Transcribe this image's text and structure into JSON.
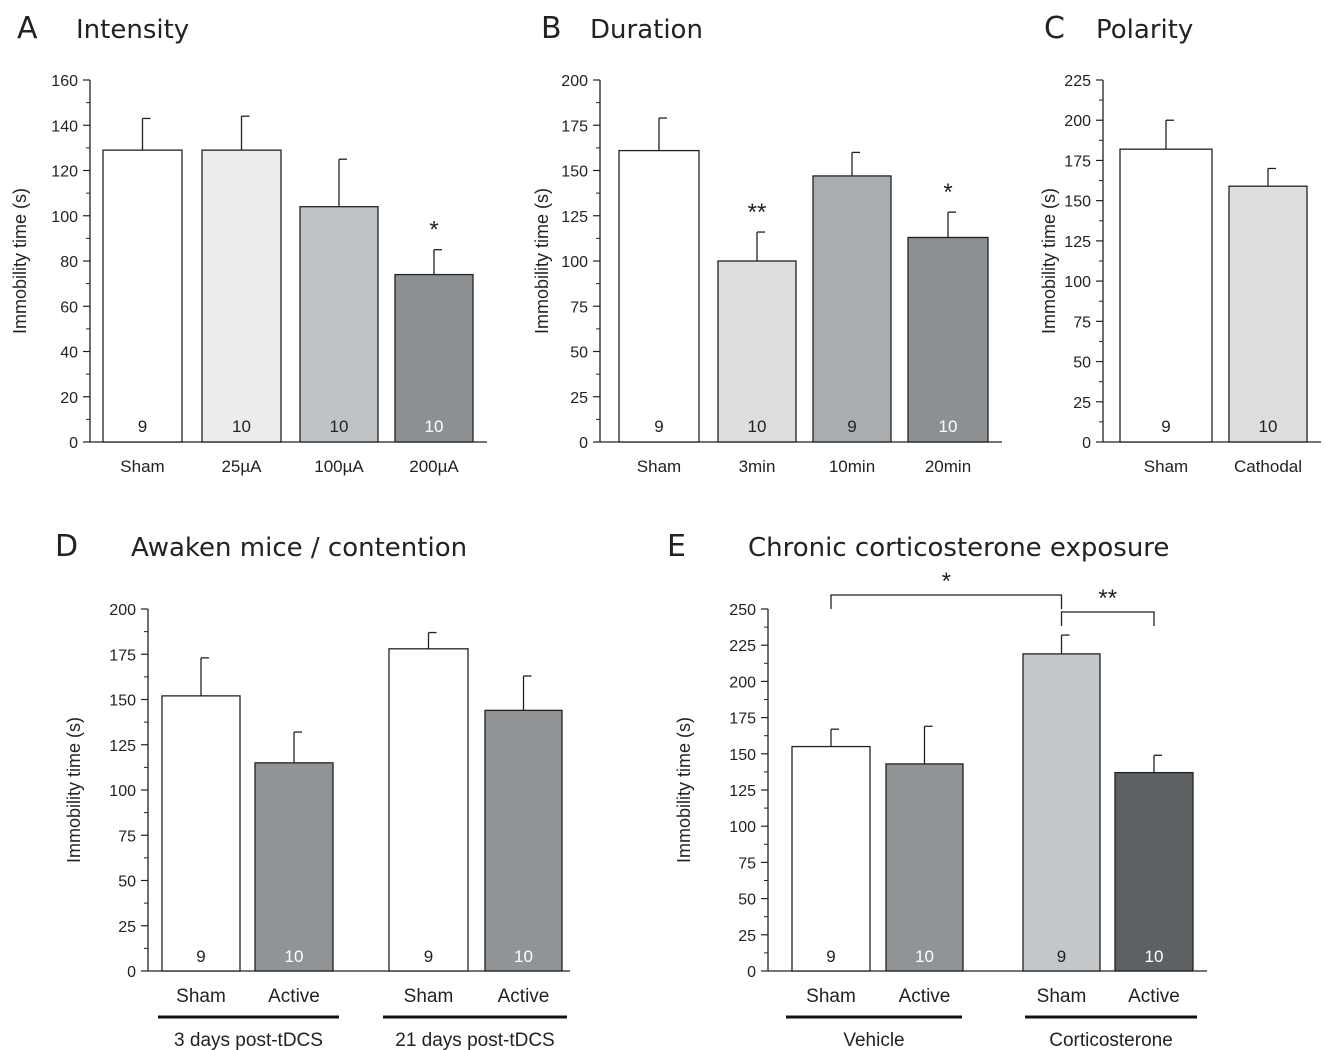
{
  "chart_data": [
    {
      "id": "A",
      "type": "bar",
      "letter": "A",
      "title": "Intensity",
      "ylabel": "Immobility time (s)",
      "ylim": [
        0,
        160
      ],
      "yticks": [
        0,
        20,
        40,
        60,
        80,
        100,
        120,
        140,
        160
      ],
      "categories": [
        "Sham",
        "25µA",
        "100µA",
        "200µA"
      ],
      "values": [
        129,
        129,
        104,
        74
      ],
      "errors": [
        14,
        15,
        21,
        11
      ],
      "n": [
        "9",
        "10",
        "10",
        "10"
      ],
      "colors": [
        "#ffffff",
        "#ececec",
        "#c0c3c6",
        "#8c9092"
      ],
      "n_colors": [
        "#222222",
        "#222222",
        "#222222",
        "#ffffff"
      ],
      "significance": [
        "",
        "",
        "",
        "*"
      ]
    },
    {
      "id": "B",
      "type": "bar",
      "letter": "B",
      "title": "Duration",
      "ylabel": "Immobility time (s)",
      "ylim": [
        0,
        200
      ],
      "yticks": [
        0,
        25,
        50,
        75,
        100,
        125,
        150,
        175,
        200
      ],
      "categories": [
        "Sham",
        "3min",
        "10min",
        "20min"
      ],
      "values": [
        161,
        100,
        147,
        113
      ],
      "errors": [
        18,
        16,
        13,
        14
      ],
      "n": [
        "9",
        "10",
        "9",
        "10"
      ],
      "colors": [
        "#ffffff",
        "#dcdedf",
        "#a9adb0",
        "#8c9092"
      ],
      "n_colors": [
        "#222222",
        "#222222",
        "#222222",
        "#ffffff"
      ],
      "significance": [
        "",
        "**",
        "",
        "*"
      ]
    },
    {
      "id": "C",
      "type": "bar",
      "letter": "C",
      "title": "Polarity",
      "ylabel": "Immobility time (s)",
      "ylim": [
        0,
        225
      ],
      "yticks": [
        0,
        25,
        50,
        75,
        100,
        125,
        150,
        175,
        200,
        225
      ],
      "categories": [
        "Sham",
        "Cathodal"
      ],
      "values": [
        182,
        159
      ],
      "errors": [
        18,
        11
      ],
      "n": [
        "9",
        "10"
      ],
      "colors": [
        "#ffffff",
        "#dcdedf"
      ],
      "n_colors": [
        "#222222",
        "#222222"
      ],
      "significance": [
        "",
        ""
      ]
    },
    {
      "id": "D",
      "type": "bar",
      "letter": "D",
      "title": "Awaken mice / contention",
      "ylabel": "Immobility time (s)",
      "ylim": [
        0,
        200
      ],
      "yticks": [
        0,
        25,
        50,
        75,
        100,
        125,
        150,
        175,
        200
      ],
      "categories": [
        "Sham",
        "Active",
        "Sham",
        "Active"
      ],
      "groups": [
        "3 days post-tDCS",
        "21 days post-tDCS"
      ],
      "values": [
        152,
        115,
        178,
        144
      ],
      "errors": [
        21,
        17,
        9,
        19
      ],
      "n": [
        "9",
        "10",
        "9",
        "10"
      ],
      "colors": [
        "#ffffff",
        "#909496",
        "#ffffff",
        "#909496"
      ],
      "n_colors": [
        "#222222",
        "#ffffff",
        "#222222",
        "#ffffff"
      ],
      "significance": [
        "",
        "",
        "",
        ""
      ]
    },
    {
      "id": "E",
      "type": "bar",
      "letter": "E",
      "title": "Chronic corticosterone exposure",
      "ylabel": "Immobility time (s)",
      "ylim": [
        0,
        250
      ],
      "yticks": [
        0,
        25,
        50,
        75,
        100,
        125,
        150,
        175,
        200,
        225,
        250
      ],
      "categories": [
        "Sham",
        "Active",
        "Sham",
        "Active"
      ],
      "groups": [
        "Vehicle",
        "Corticosterone"
      ],
      "values": [
        155,
        143,
        219,
        137
      ],
      "errors": [
        12,
        26,
        13,
        12
      ],
      "n": [
        "9",
        "10",
        "9",
        "10"
      ],
      "colors": [
        "#ffffff",
        "#909496",
        "#c4c7c9",
        "#5e6163"
      ],
      "n_colors": [
        "#222222",
        "#ffffff",
        "#222222",
        "#ffffff"
      ],
      "brackets": [
        {
          "from": 0,
          "to": 2,
          "label": "*"
        },
        {
          "from": 2,
          "to": 3,
          "label": "**"
        }
      ]
    }
  ]
}
